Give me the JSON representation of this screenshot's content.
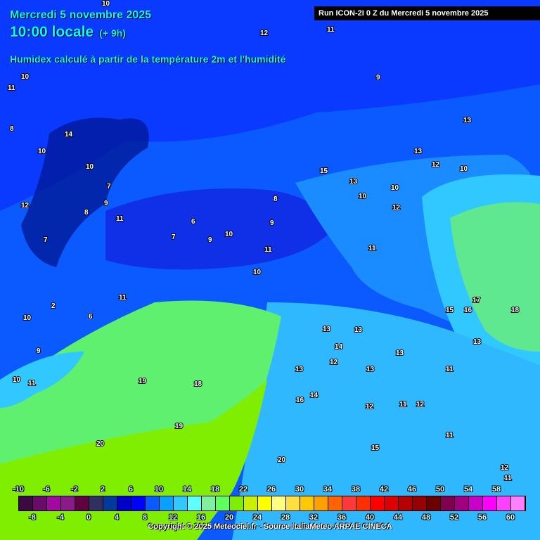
{
  "header": {
    "date": "Mercredi 5 novembre 2025",
    "time": "10:00 locale",
    "offset": "(+ 9h)",
    "subtitle": "Humidex calculé à partir de la température 2m et l'humidité",
    "run": "Run ICON-2I 0 Z du Mercredi 5 novembre 2025"
  },
  "colorbar": {
    "top_labels": [
      "-10",
      "-6",
      "-2",
      "2",
      "6",
      "10",
      "14",
      "18",
      "22",
      "26",
      "30",
      "34",
      "38",
      "42",
      "46",
      "50",
      "54",
      "58"
    ],
    "bottom_labels": [
      "-8",
      "-4",
      "0",
      "4",
      "8",
      "12",
      "16",
      "20",
      "24",
      "28",
      "32",
      "36",
      "40",
      "44",
      "48",
      "52",
      "56",
      "60"
    ],
    "colors": [
      "#3a0a40",
      "#6a0a6a",
      "#a00aa0",
      "#8a1a8a",
      "#600040",
      "#303060",
      "#003a9a",
      "#0000c8",
      "#0000ff",
      "#0a5aff",
      "#0aa0ff",
      "#30c8ff",
      "#60ffff",
      "#80f0a0",
      "#60ff60",
      "#80ee00",
      "#c8f000",
      "#ffff00",
      "#ffff80",
      "#ffe040",
      "#ffc800",
      "#ffa000",
      "#ff6400",
      "#ff3838",
      "#ff3000",
      "#ff0000",
      "#dc0000",
      "#b40000",
      "#960000",
      "#6a0000",
      "#800050",
      "#a00080",
      "#c800c8",
      "#ff00ff",
      "#ff40ff",
      "#ff80ff"
    ]
  },
  "map_colors": {
    "deep_blue": "#0a3aff",
    "blue": "#0050ff",
    "mid_blue": "#1a8cff",
    "light_blue": "#30c8ff",
    "cyan": "#60ffff",
    "pale_green": "#80f0a0",
    "green": "#60ff60",
    "lime": "#80ee00"
  },
  "contour_labels": [
    "10",
    "12",
    "11",
    "10",
    "9",
    "8",
    "10",
    "14",
    "10",
    "8",
    "7",
    "9",
    "11",
    "12",
    "7",
    "6",
    "7",
    "9",
    "10",
    "8",
    "9",
    "11",
    "10",
    "12",
    "13",
    "15",
    "13",
    "10",
    "12",
    "10",
    "11",
    "10",
    "13",
    "17",
    "18",
    "15",
    "16",
    "13",
    "12",
    "13",
    "13",
    "11",
    "12",
    "11",
    "12",
    "13",
    "19",
    "18",
    "19",
    "20",
    "20",
    "16",
    "14",
    "13",
    "11",
    "15",
    "12",
    "11",
    "2",
    "10",
    "9",
    "10",
    "11",
    "6",
    "13",
    "14",
    "11",
    "11"
  ],
  "copyright": "Copyright © 2025 Meteociel.fr - Source ItaliaMeteo ARPAE CINECA"
}
